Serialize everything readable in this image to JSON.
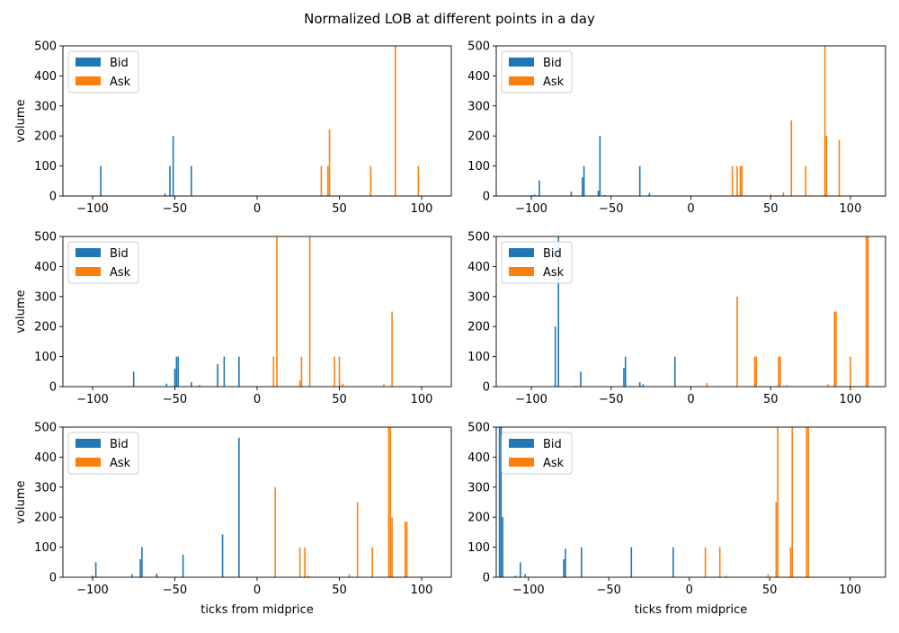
{
  "figure": {
    "title": "Normalized LOB at different points in a day"
  },
  "colors": {
    "bid": "#1f77b4",
    "ask": "#ff7f0e"
  },
  "chart_data": [
    {
      "type": "bar",
      "xlabel": "",
      "ylabel": "volume",
      "xlim": [
        -118,
        118
      ],
      "ylim": [
        0,
        500
      ],
      "xticks": [
        -100,
        -50,
        0,
        50,
        100
      ],
      "yticks": [
        0,
        100,
        200,
        300,
        400,
        500
      ],
      "legend": {
        "position": "upper-left",
        "entries": [
          "Bid",
          "Ask"
        ]
      },
      "series": [
        {
          "name": "Bid",
          "x": [
            -95,
            -56,
            -53,
            -51,
            -40
          ],
          "values": [
            100,
            8,
            100,
            200,
            100
          ]
        },
        {
          "name": "Ask",
          "x": [
            39,
            43,
            44,
            69,
            84,
            98
          ],
          "values": [
            100,
            100,
            222,
            100,
            500,
            100
          ]
        }
      ]
    },
    {
      "type": "bar",
      "xlabel": "",
      "ylabel": "",
      "xlim": [
        -122,
        122
      ],
      "ylim": [
        0,
        500
      ],
      "xticks": [
        -100,
        -50,
        0,
        50,
        100
      ],
      "yticks": [
        0,
        100,
        200,
        300,
        400,
        500
      ],
      "legend": {
        "position": "upper-left",
        "entries": [
          "Bid",
          "Ask"
        ]
      },
      "series": [
        {
          "name": "Bid",
          "x": [
            -100,
            -98,
            -95,
            -75,
            -68,
            -67,
            -58,
            -57,
            -54,
            -32,
            -26
          ],
          "values": [
            3,
            5,
            52,
            15,
            62,
            100,
            18,
            200,
            3,
            100,
            10
          ]
        },
        {
          "name": "Ask",
          "x": [
            26,
            29,
            31,
            32,
            50,
            58,
            63,
            72,
            84,
            85,
            93
          ],
          "values": [
            100,
            100,
            100,
            100,
            5,
            12,
            252,
            100,
            500,
            200,
            187
          ]
        }
      ]
    },
    {
      "type": "bar",
      "xlabel": "",
      "ylabel": "volume",
      "xlim": [
        -118,
        118
      ],
      "ylim": [
        0,
        500
      ],
      "xticks": [
        -100,
        -50,
        0,
        50,
        100
      ],
      "yticks": [
        0,
        100,
        200,
        300,
        400,
        500
      ],
      "legend": {
        "position": "upper-left",
        "entries": [
          "Bid",
          "Ask"
        ]
      },
      "series": [
        {
          "name": "Bid",
          "x": [
            -75,
            -55,
            -50,
            -49,
            -48,
            -40,
            -35,
            -24,
            -20,
            -11
          ],
          "values": [
            50,
            10,
            60,
            100,
            100,
            15,
            5,
            75,
            100,
            100
          ]
        },
        {
          "name": "Ask",
          "x": [
            10,
            12,
            26,
            27,
            32,
            47,
            50,
            52,
            77,
            82
          ],
          "values": [
            100,
            500,
            20,
            100,
            500,
            100,
            100,
            10,
            8,
            250
          ]
        }
      ]
    },
    {
      "type": "bar",
      "xlabel": "",
      "ylabel": "",
      "xlim": [
        -122,
        122
      ],
      "ylim": [
        0,
        500
      ],
      "xticks": [
        -100,
        -50,
        0,
        50,
        100
      ],
      "yticks": [
        0,
        100,
        200,
        300,
        400,
        500
      ],
      "legend": {
        "position": "upper-left",
        "entries": [
          "Bid",
          "Ask"
        ]
      },
      "series": [
        {
          "name": "Bid",
          "x": [
            -85,
            -83,
            -72,
            -69,
            -42,
            -41,
            -32,
            -30,
            -10
          ],
          "values": [
            200,
            500,
            3,
            50,
            62,
            100,
            15,
            8,
            100
          ]
        },
        {
          "name": "Ask",
          "x": [
            10,
            29,
            40,
            41,
            55,
            56,
            60,
            86,
            90,
            91,
            100,
            110,
            111
          ],
          "values": [
            12,
            300,
            100,
            100,
            100,
            100,
            5,
            8,
            250,
            250,
            100,
            500,
            500
          ]
        }
      ]
    },
    {
      "type": "bar",
      "xlabel": "ticks from midprice",
      "ylabel": "volume",
      "xlim": [
        -118,
        118
      ],
      "ylim": [
        0,
        500
      ],
      "xticks": [
        -100,
        -50,
        0,
        50,
        100
      ],
      "yticks": [
        0,
        100,
        200,
        300,
        400,
        500
      ],
      "legend": {
        "position": "upper-left",
        "entries": [
          "Bid",
          "Ask"
        ]
      },
      "series": [
        {
          "name": "Bid",
          "x": [
            -100,
            -98,
            -76,
            -71,
            -70,
            -61,
            -45,
            -21,
            -11
          ],
          "values": [
            5,
            50,
            10,
            60,
            100,
            12,
            75,
            142,
            465
          ]
        },
        {
          "name": "Ask",
          "x": [
            11,
            26,
            29,
            31,
            56,
            61,
            70,
            80,
            81,
            82,
            90,
            91
          ],
          "values": [
            300,
            100,
            100,
            5,
            10,
            250,
            100,
            500,
            500,
            200,
            185,
            185
          ]
        }
      ]
    },
    {
      "type": "bar",
      "xlabel": "ticks from midprice",
      "ylabel": "",
      "xlim": [
        -120,
        122
      ],
      "ylim": [
        0,
        500
      ],
      "xticks": [
        -100,
        -50,
        0,
        50,
        100
      ],
      "yticks": [
        0,
        100,
        200,
        300,
        400,
        500
      ],
      "legend": {
        "position": "upper-left",
        "entries": [
          "Bid",
          "Ask"
        ]
      },
      "series": [
        {
          "name": "Bid",
          "x": [
            -118,
            -117,
            -116,
            -108,
            -105,
            -102,
            -78,
            -77,
            -67,
            -36,
            -10
          ],
          "values": [
            500,
            500,
            200,
            5,
            50,
            10,
            60,
            95,
            100,
            100,
            100
          ]
        },
        {
          "name": "Ask",
          "x": [
            10,
            19,
            23,
            49,
            54,
            55,
            63,
            64,
            73,
            74
          ],
          "values": [
            100,
            100,
            5,
            10,
            250,
            500,
            100,
            500,
            500,
            500
          ]
        }
      ]
    }
  ]
}
